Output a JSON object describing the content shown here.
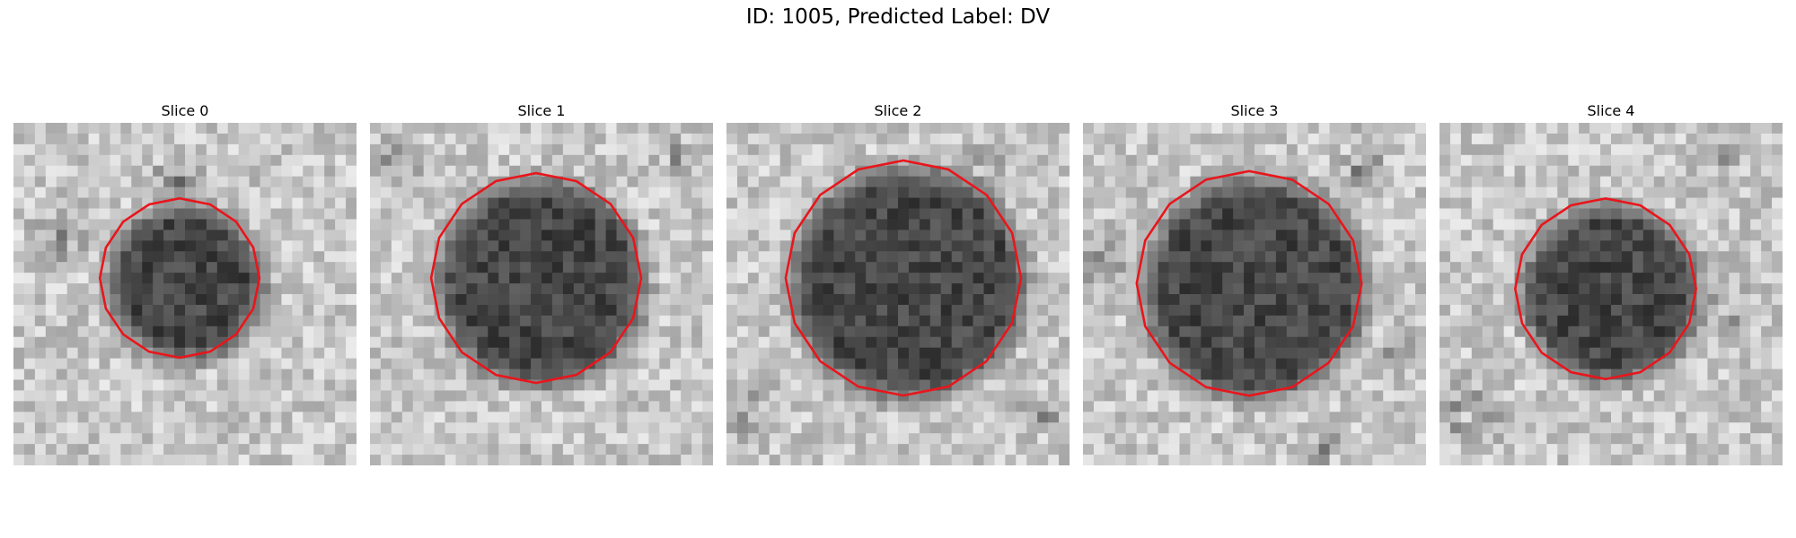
{
  "figure": {
    "title": "ID: 1005, Predicted Label: DV"
  },
  "slices": [
    {
      "title": "Slice 0"
    },
    {
      "title": "Slice 1"
    },
    {
      "title": "Slice 2"
    },
    {
      "title": "Slice 3"
    },
    {
      "title": "Slice 4"
    }
  ],
  "contour_color": "#e8161c"
}
